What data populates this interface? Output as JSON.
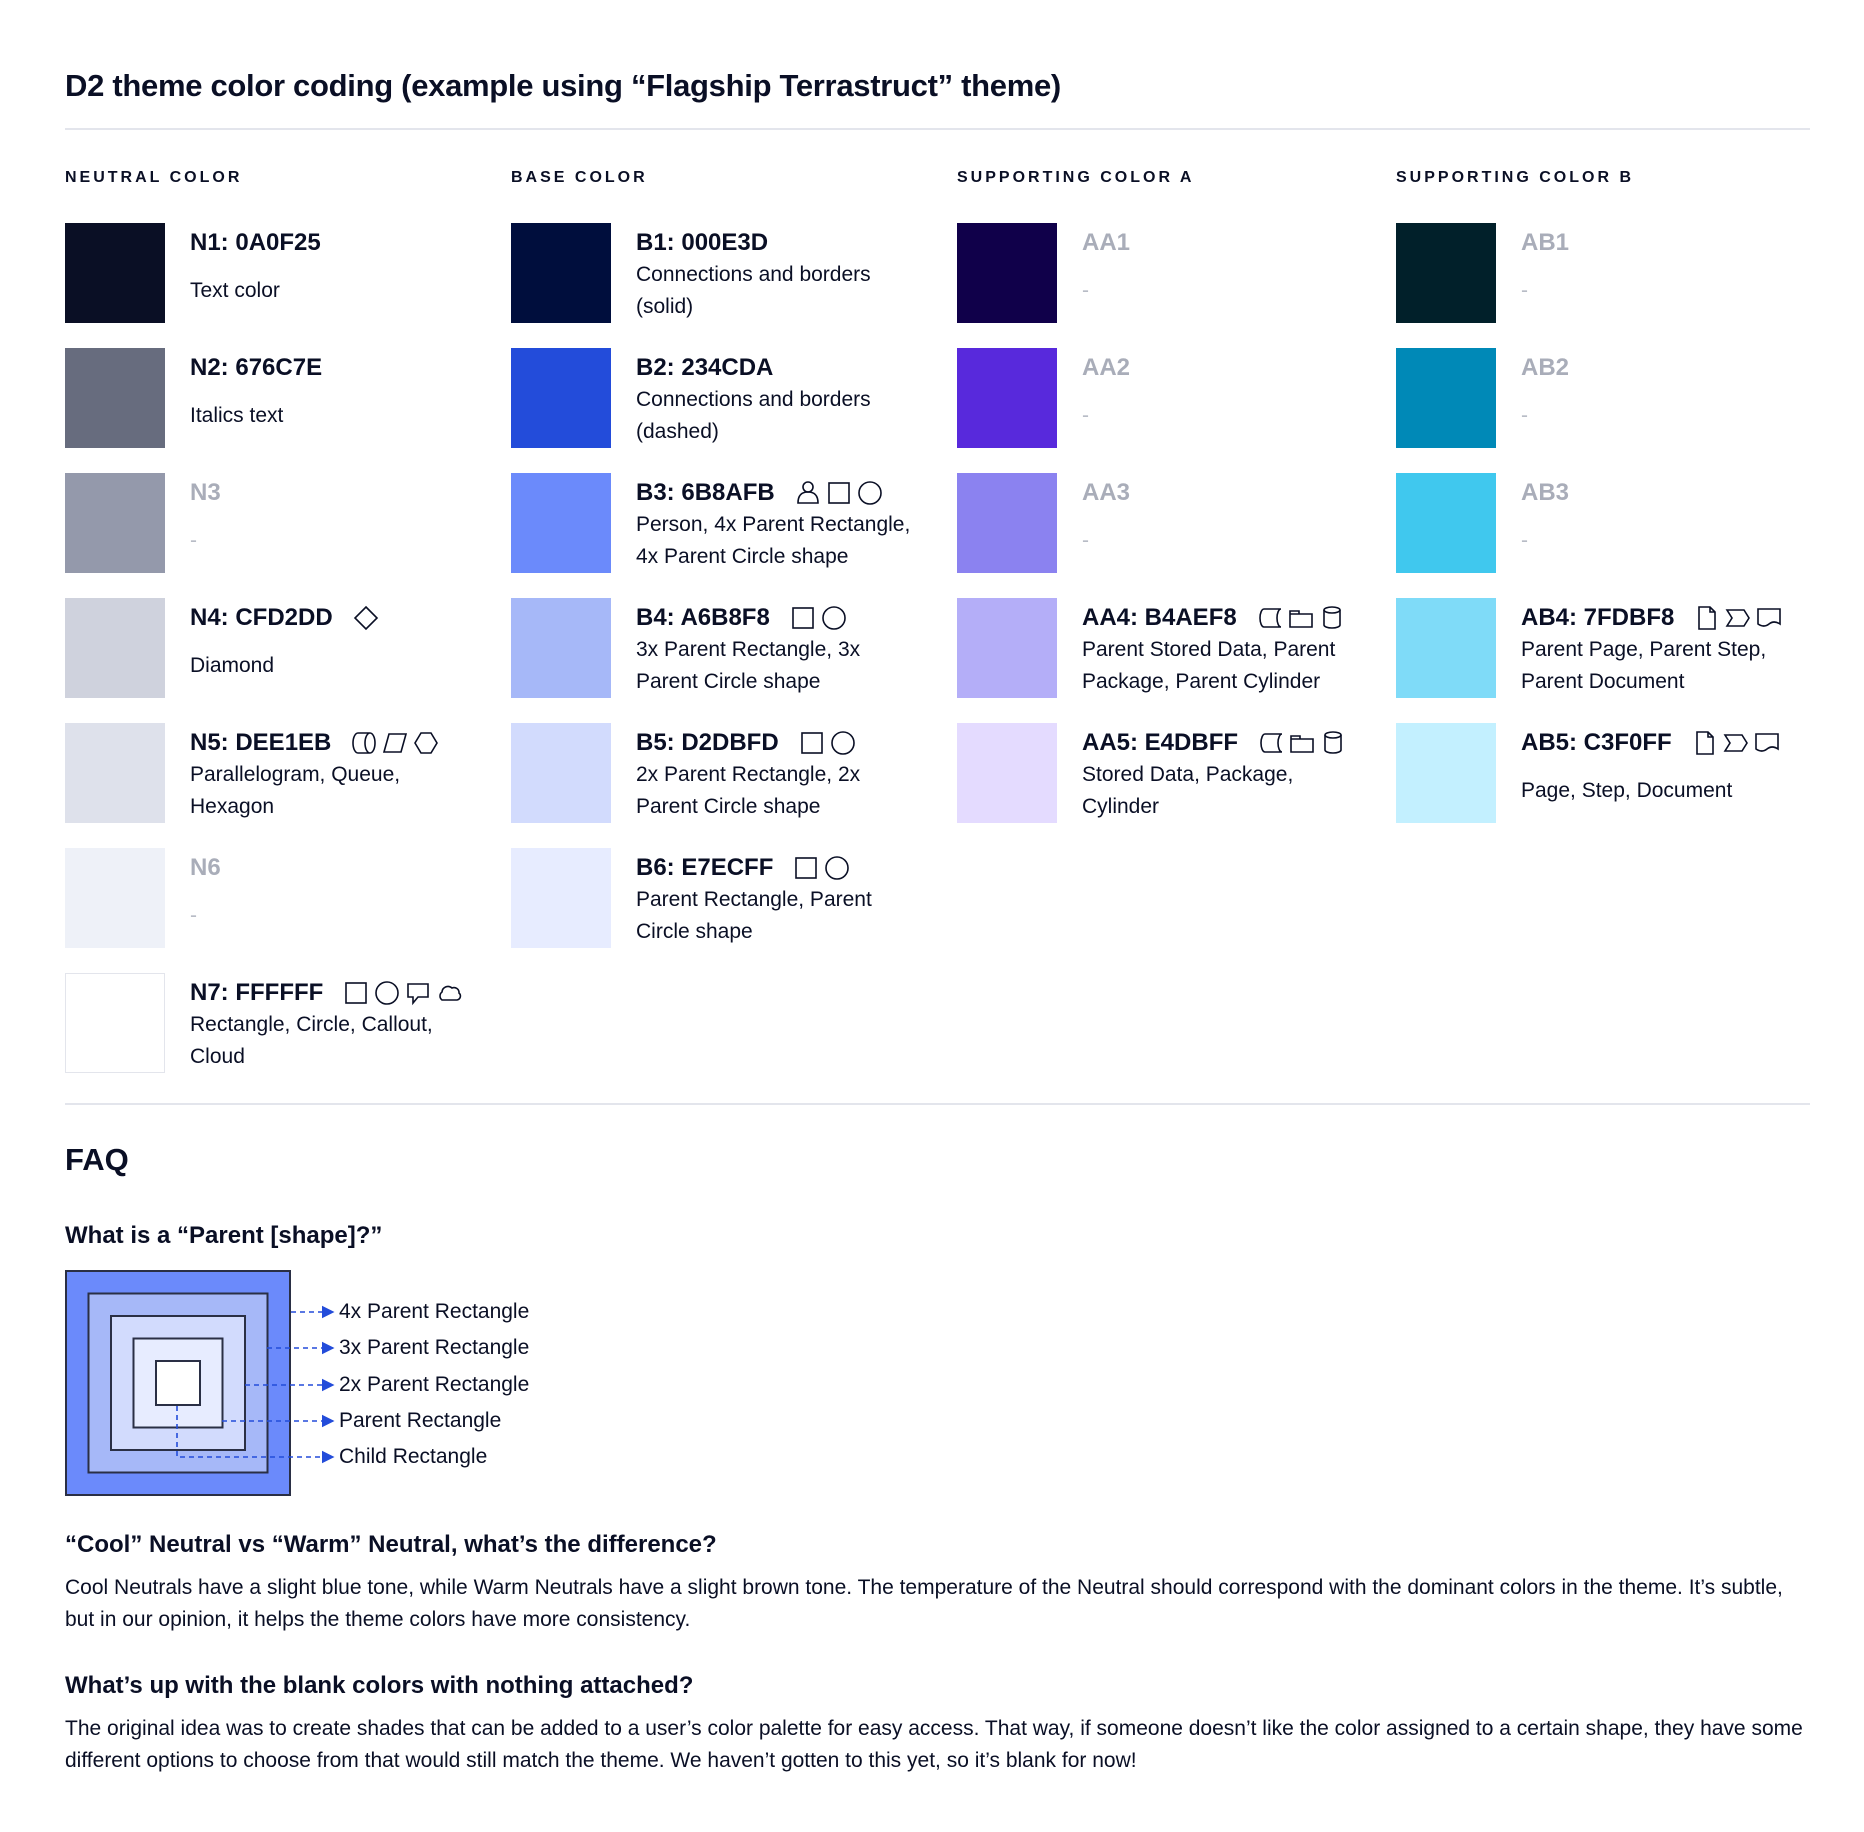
{
  "title": "D2 theme color coding (example using “Flagship Terrastruct” theme)",
  "columns": [
    {
      "heading": "NEUTRAL COLOR",
      "items": [
        {
          "title": "N1: 0A0F25",
          "color": "#0A0F25",
          "desc": "Text color",
          "single": true,
          "icons": []
        },
        {
          "title": "N2: 676C7E",
          "color": "#676C7E",
          "desc": "Italics text",
          "single": true,
          "icons": []
        },
        {
          "title": "N3",
          "color": "#9499AB",
          "desc": "-",
          "blank": true,
          "icons": []
        },
        {
          "title": "N4: CFD2DD",
          "color": "#CFD2DD",
          "desc": "Diamond",
          "single": true,
          "icons": [
            "diamond"
          ]
        },
        {
          "title": "N5: DEE1EB",
          "color": "#DEE1EB",
          "desc": "Parallelogram, Queue,\nHexagon",
          "icons": [
            "queue",
            "parallelogram",
            "hexagon"
          ]
        },
        {
          "title": "N6",
          "color": "#EEF1F8",
          "desc": "-",
          "blank": true,
          "icons": []
        },
        {
          "title": "N7: FFFFFF",
          "color": "#FFFFFF",
          "desc": "Rectangle, Circle, Callout,\nCloud",
          "icons": [
            "rectangle",
            "circle",
            "callout",
            "cloud"
          ]
        }
      ]
    },
    {
      "heading": "BASE COLOR",
      "items": [
        {
          "title": "B1: 000E3D",
          "color": "#000E3D",
          "desc": "Connections and borders\n(solid)",
          "icons": []
        },
        {
          "title": "B2: 234CDA",
          "color": "#234CDA",
          "desc": "Connections and borders\n(dashed)",
          "icons": []
        },
        {
          "title": "B3: 6B8AFB",
          "color": "#6B8AFB",
          "desc": "Person, 4x Parent Rectangle,\n4x Parent Circle shape",
          "icons": [
            "person",
            "rectangle",
            "circle"
          ]
        },
        {
          "title": "B4: A6B8F8",
          "color": "#A6B8F8",
          "desc": "3x Parent Rectangle, 3x\nParent Circle shape",
          "icons": [
            "rectangle",
            "circle"
          ]
        },
        {
          "title": "B5: D2DBFD",
          "color": "#D2DBFD",
          "desc": "2x Parent Rectangle, 2x\nParent Circle shape",
          "icons": [
            "rectangle",
            "circle"
          ]
        },
        {
          "title": "B6: E7ECFF",
          "color": "#E7ECFF",
          "desc": "Parent Rectangle, Parent\nCircle shape",
          "icons": [
            "rectangle",
            "circle"
          ]
        }
      ]
    },
    {
      "heading": "SUPPORTING COLOR A",
      "items": [
        {
          "title": "AA1",
          "color": "#10004A",
          "desc": "-",
          "blank": true,
          "icons": []
        },
        {
          "title": "AA2",
          "color": "#5829DC",
          "desc": "-",
          "blank": true,
          "icons": []
        },
        {
          "title": "AA3",
          "color": "#8B82F0",
          "desc": "-",
          "blank": true,
          "icons": []
        },
        {
          "title": "AA4: B4AEF8",
          "color": "#B4AEF8",
          "desc": "Parent Stored Data, Parent\nPackage,  Parent Cylinder",
          "icons": [
            "stored-data",
            "package",
            "cylinder"
          ]
        },
        {
          "title": "AA5: E4DBFF",
          "color": "#E4DBFF",
          "desc": "Stored Data, Package,\nCylinder",
          "icons": [
            "stored-data",
            "package",
            "cylinder"
          ]
        }
      ]
    },
    {
      "heading": "SUPPORTING COLOR B",
      "items": [
        {
          "title": "AB1",
          "color": "#01202A",
          "desc": "-",
          "blank": true,
          "icons": []
        },
        {
          "title": "AB2",
          "color": "#0089B7",
          "desc": "-",
          "blank": true,
          "icons": []
        },
        {
          "title": "AB3",
          "color": "#40C8EE",
          "desc": "-",
          "blank": true,
          "icons": []
        },
        {
          "title": "AB4: 7FDBF8",
          "color": "#7FDBF8",
          "desc": "Parent Page, Parent Step,\nParent Document",
          "icons": [
            "page",
            "step",
            "document"
          ]
        },
        {
          "title": "AB5: C3F0FF",
          "color": "#C3F0FF",
          "desc": "Page, Step, Document",
          "single": true,
          "icons": [
            "page",
            "step",
            "document"
          ]
        }
      ]
    }
  ],
  "faq": {
    "heading": "FAQ",
    "q1": "What is a “Parent [shape]?”",
    "diagram_labels": [
      "4x Parent Rectangle",
      "3x Parent Rectangle",
      "2x Parent Rectangle",
      "Parent Rectangle",
      "Child Rectangle"
    ],
    "diagram_colors": [
      "#6B8AFB",
      "#A6B8F8",
      "#D2DBFD",
      "#E7ECFF",
      "#FFFFFF"
    ],
    "arrow_color": "#234CDA",
    "q2": "“Cool” Neutral vs “Warm” Neutral, what’s the difference?",
    "a2": "Cool Neutrals have a slight blue tone, while Warm Neutrals have a slight brown tone. The temperature of the Neutral should correspond with the dominant colors in the theme. It’s subtle, but in our opinion, it helps the theme colors have more consistency.",
    "q3": "What’s up with the blank colors with nothing attached?",
    "a3": "The original idea was to create shades that can be added to a user’s color palette for easy access. That way, if someone doesn’t like the color assigned to a certain shape, they have some different options to choose from that would still match the theme. We haven’t gotten to this yet, so it’s blank for now!"
  }
}
